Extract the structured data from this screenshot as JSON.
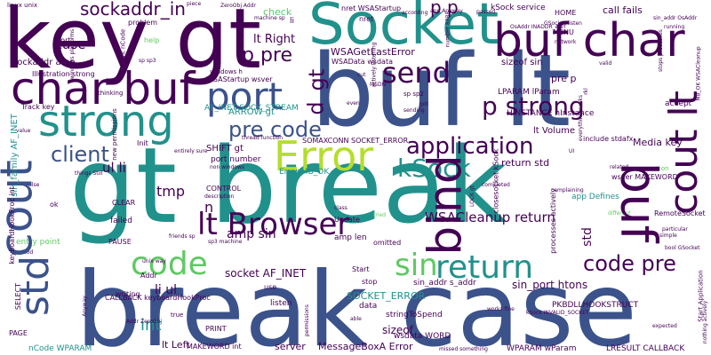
{
  "palette": {
    "background": "#ffffff",
    "dark_purple": "#440154",
    "indigo": "#3b528b",
    "teal": "#21918c",
    "green": "#5ec962",
    "lime": "#b5de2b"
  },
  "words": [
    {
      "text": "gt break",
      "color": "#21918c",
      "weight": 100
    },
    {
      "text": "break case",
      "color": "#3b528b",
      "weight": 98
    },
    {
      "text": "buf lt",
      "color": "#3b528b",
      "weight": 96
    },
    {
      "text": "key gt",
      "color": "#440154",
      "weight": 90
    },
    {
      "text": "Socket",
      "color": "#21918c",
      "weight": 78
    },
    {
      "text": "buf char",
      "color": "#440154",
      "weight": 72
    },
    {
      "text": "char buf",
      "color": "#440154",
      "weight": 70
    },
    {
      "text": "strong",
      "color": "#21918c",
      "weight": 66
    },
    {
      "text": "Error",
      "color": "#b5de2b",
      "weight": 60
    },
    {
      "text": "cout",
      "color": "#3b528b",
      "weight": 58
    },
    {
      "text": "buf",
      "color": "#440154",
      "weight": 56
    },
    {
      "text": "port",
      "color": "#3b528b",
      "weight": 54
    },
    {
      "text": "bind",
      "color": "#440154",
      "weight": 52
    },
    {
      "text": "return",
      "color": "#21918c",
      "weight": 48
    },
    {
      "text": "code",
      "color": "#5ec962",
      "weight": 46
    },
    {
      "text": "std",
      "color": "#3b528b",
      "weight": 46
    },
    {
      "text": "sin",
      "color": "#5ec962",
      "weight": 44
    },
    {
      "text": "cout lt",
      "color": "#440154",
      "weight": 44
    },
    {
      "text": "lt Browser",
      "color": "#440154",
      "weight": 42
    },
    {
      "text": "send",
      "color": "#440154",
      "weight": 40
    },
    {
      "text": "p strong",
      "color": "#440154",
      "weight": 38
    },
    {
      "text": "application",
      "color": "#440154",
      "weight": 34
    },
    {
      "text": "kSock",
      "color": "#21918c",
      "weight": 34
    },
    {
      "text": "pre code",
      "color": "#3b528b",
      "weight": 32
    },
    {
      "text": "client",
      "color": "#3b528b",
      "weight": 32
    },
    {
      "text": "code pre",
      "color": "#440154",
      "weight": 30
    },
    {
      "text": "p pre",
      "color": "#440154",
      "weight": 28
    },
    {
      "text": "sockaddr_in",
      "color": "#440154",
      "weight": 26
    },
    {
      "text": "p p",
      "color": "#440154",
      "weight": 26
    },
    {
      "text": "gt",
      "color": "#440154",
      "weight": 26
    },
    {
      "text": "d",
      "color": "#440154",
      "weight": 24
    },
    {
      "text": "int",
      "color": "#21918c",
      "weight": 24
    },
    {
      "text": "tmp",
      "color": "#440154",
      "weight": 22
    },
    {
      "text": "n",
      "color": "#440154",
      "weight": 22
    },
    {
      "text": "WSACleanup return",
      "color": "#440154",
      "weight": 22
    },
    {
      "text": "ul li",
      "color": "#440154",
      "weight": 20
    },
    {
      "text": "li ul",
      "color": "#440154",
      "weight": 20
    },
    {
      "text": "amp sin",
      "color": "#440154",
      "weight": 20
    },
    {
      "text": "std",
      "color": "#440154",
      "weight": 20
    },
    {
      "text": "sin_port htons",
      "color": "#440154",
      "weight": 18
    },
    {
      "text": "return std",
      "color": "#440154",
      "weight": 16
    },
    {
      "text": "WSAGetLastError",
      "color": "#440154",
      "weight": 16
    },
    {
      "text": "lt Right",
      "color": "#440154",
      "weight": 16
    },
    {
      "text": "call fails",
      "color": "#440154",
      "weight": 16
    },
    {
      "text": "kSock service",
      "color": "#440154",
      "weight": 14
    },
    {
      "text": "socket AF_INET",
      "color": "#440154",
      "weight": 14
    },
    {
      "text": "case",
      "color": "#440154",
      "weight": 14
    },
    {
      "text": "sockaddr amp",
      "color": "#440154",
      "weight": 14
    },
    {
      "text": "lt Left",
      "color": "#440154",
      "weight": 14
    },
    {
      "text": "SOCKET_ERROR",
      "color": "#21918c",
      "weight": 14
    },
    {
      "text": "sizeof",
      "color": "#440154",
      "weight": 14
    },
    {
      "text": "Media key",
      "color": "#440154",
      "weight": 13
    },
    {
      "text": "RemoteSocket",
      "color": "#440154",
      "weight": 13
    },
    {
      "text": "accept",
      "color": "#440154",
      "weight": 13
    },
    {
      "text": "check",
      "color": "#5ec962",
      "weight": 13
    },
    {
      "text": "sin_family AF_INET",
      "color": "#21918c",
      "weight": 13
    },
    {
      "text": "AF_INET SOCK_STREAM",
      "color": "#21918c",
      "weight": 12
    },
    {
      "text": "ARROW gt",
      "color": "#21918c",
      "weight": 12
    },
    {
      "text": "lt Volume",
      "color": "#440154",
      "weight": 12
    },
    {
      "text": "pre p",
      "color": "#440154",
      "weight": 12
    },
    {
      "text": "sizeof sin",
      "color": "#440154",
      "weight": 12
    },
    {
      "text": "CALLBACK keyboardHookProc",
      "color": "#440154",
      "weight": 12
    },
    {
      "text": "MessageBoxA Error",
      "color": "#440154",
      "weight": 12
    },
    {
      "text": "server",
      "color": "#440154",
      "weight": 12
    },
    {
      "text": "MAKEWORD int",
      "color": "#440154",
      "weight": 11
    },
    {
      "text": "LPARAM lParam",
      "color": "#440154",
      "weight": 11
    },
    {
      "text": "Error MB_OK",
      "color": "#21918c",
      "weight": 11
    },
    {
      "text": "SHIFT gt",
      "color": "#440154",
      "weight": 11
    },
    {
      "text": "port number",
      "color": "#440154",
      "weight": 11
    },
    {
      "text": "Illustration strong",
      "color": "#440154",
      "weight": 10
    },
    {
      "text": "failed",
      "color": "#440154",
      "weight": 10
    },
    {
      "text": "listen",
      "color": "#440154",
      "weight": 10
    },
    {
      "text": "data",
      "color": "#440154",
      "weight": 10
    },
    {
      "text": "stringToSpend",
      "color": "#440154",
      "weight": 10
    },
    {
      "text": "wsdata WORD",
      "color": "#440154",
      "weight": 10
    },
    {
      "text": "LRESULT CALLBACK",
      "color": "#440154",
      "weight": 10
    },
    {
      "text": "WPARAM wParam",
      "color": "#440154",
      "weight": 10
    },
    {
      "text": "nCode WPARAM",
      "color": "#21918c",
      "weight": 10
    },
    {
      "text": "PKBDLLHOOKSTRUCT",
      "color": "#440154",
      "weight": 10
    },
    {
      "text": "SOMAXCONN SOCKET_ERROR",
      "color": "#440154",
      "weight": 10
    },
    {
      "text": "HINSTANCE hInstance",
      "color": "#440154",
      "weight": 10
    },
    {
      "text": "WSAStartup wsver",
      "color": "#440154",
      "weight": 10
    },
    {
      "text": "WSAData wsdata",
      "color": "#440154",
      "weight": 10
    },
    {
      "text": "closesocket kSock",
      "color": "#440154",
      "weight": 10
    },
    {
      "text": "include stdafx",
      "color": "#440154",
      "weight": 10
    },
    {
      "text": "wsver MAKEWORD",
      "color": "#440154",
      "weight": 10
    },
    {
      "text": "app Defines",
      "color": "#21918c",
      "weight": 10
    },
    {
      "text": "Init",
      "color": "#440154",
      "weight": 10
    },
    {
      "text": "entry point",
      "color": "#5ec962",
      "weight": 10
    },
    {
      "text": "keyboardHookProc int",
      "color": "#440154",
      "weight": 10
    },
    {
      "text": "Track key",
      "color": "#440154",
      "weight": 10
    },
    {
      "text": "amp len",
      "color": "#440154",
      "weight": 10
    },
    {
      "text": "Addr",
      "color": "#440154",
      "weight": 10
    },
    {
      "text": "stop",
      "color": "#440154",
      "weight": 10
    },
    {
      "text": "sin_addr s_addr",
      "color": "#440154",
      "weight": 9
    },
    {
      "text": "help",
      "color": "#5ec962",
      "weight": 9
    },
    {
      "text": "sort",
      "color": "#440154",
      "weight": 9
    },
    {
      "text": "CLEAR",
      "color": "#440154",
      "weight": 9
    },
    {
      "text": "PAUSE",
      "color": "#440154",
      "weight": 9
    },
    {
      "text": "SELECT",
      "color": "#440154",
      "weight": 9
    },
    {
      "text": "PRINT",
      "color": "#440154",
      "weight": 9
    },
    {
      "text": "PAGE",
      "color": "#440154",
      "weight": 9
    },
    {
      "text": "CONTROL",
      "color": "#440154",
      "weight": 9
    },
    {
      "text": "writing",
      "color": "#440154",
      "weight": 9
    },
    {
      "text": "problem",
      "color": "#440154",
      "weight": 9
    },
    {
      "text": "ok",
      "color": "#440154",
      "weight": 9
    },
    {
      "text": "use",
      "color": "#440154",
      "weight": 9
    },
    {
      "text": "Update",
      "color": "#440154",
      "weight": 9
    },
    {
      "text": "omitted",
      "color": "#440154",
      "weight": 9
    },
    {
      "text": "Start",
      "color": "#440154",
      "weight": 9
    },
    {
      "text": "nret WSAStartup",
      "color": "#440154",
      "weight": 9
    },
    {
      "text": "nret",
      "color": "#440154",
      "weight": 9
    },
    {
      "text": "HOME",
      "color": "#440154",
      "weight": 9
    },
    {
      "text": "MENU",
      "color": "#440154",
      "weight": 9
    },
    {
      "text": "li",
      "color": "#440154",
      "weight": 9
    },
    {
      "text": "windows h",
      "color": "#440154",
      "weight": 8
    },
    {
      "text": "sp sp2",
      "color": "#440154",
      "weight": 8
    },
    {
      "text": "thinking",
      "color": "#440154",
      "weight": 8
    },
    {
      "text": "connection",
      "color": "#5ec962",
      "weight": 8
    },
    {
      "text": "true",
      "color": "#440154",
      "weight": 8
    },
    {
      "text": "linux unix",
      "color": "#440154",
      "weight": 8
    },
    {
      "text": "new permissions",
      "color": "#440154",
      "weight": 8
    },
    {
      "text": "ZeroObj Addr",
      "color": "#440154",
      "weight": 7
    },
    {
      "text": "app Anyway",
      "color": "#440154",
      "weight": 7
    },
    {
      "text": "sin_addr OsAddr",
      "color": "#440154",
      "weight": 7
    },
    {
      "text": "GSocket listen",
      "color": "#440154",
      "weight": 7
    },
    {
      "text": "running",
      "color": "#440154",
      "weight": 7
    },
    {
      "text": "thread function",
      "color": "#440154",
      "weight": 7
    },
    {
      "text": "non windows",
      "color": "#440154",
      "weight": 7
    },
    {
      "text": "description",
      "color": "#440154",
      "weight": 7
    },
    {
      "text": "particular",
      "color": "#440154",
      "weight": 7
    },
    {
      "text": "simple",
      "color": "#440154",
      "weight": 7
    },
    {
      "text": "bool GSocket",
      "color": "#440154",
      "weight": 7
    },
    {
      "text": "expected",
      "color": "#440154",
      "weight": 7
    },
    {
      "text": "missed something",
      "color": "#440154",
      "weight": 7
    },
    {
      "text": "stops processes",
      "color": "#440154",
      "weight": 7
    },
    {
      "text": "things Still",
      "color": "#440154",
      "weight": 7
    },
    {
      "text": "entirely sure",
      "color": "#440154",
      "weight": 7
    },
    {
      "text": "value",
      "color": "#440154",
      "weight": 7
    },
    {
      "text": "method",
      "color": "#440154",
      "weight": 7
    },
    {
      "text": "sp3 machine",
      "color": "#440154",
      "weight": 7
    },
    {
      "text": "friends sp",
      "color": "#440154",
      "weight": 7
    },
    {
      "text": "different",
      "color": "#5ec962",
      "weight": 7
    },
    {
      "text": "related",
      "color": "#440154",
      "weight": 7
    },
    {
      "text": "tried",
      "color": "#5ec962",
      "weight": 7
    },
    {
      "text": "class",
      "color": "#440154",
      "weight": 7
    },
    {
      "text": "false",
      "color": "#440154",
      "weight": 7
    },
    {
      "text": "cut",
      "color": "#440154",
      "weight": 7
    },
    {
      "text": "got",
      "color": "#440154",
      "weight": 7
    },
    {
      "text": "sending",
      "color": "#440154",
      "weight": 7
    },
    {
      "text": "MSDN",
      "color": "#440154",
      "weight": 7
    },
    {
      "text": "network",
      "color": "#440154",
      "weight": 7
    },
    {
      "text": "piece",
      "color": "#440154",
      "weight": 7
    },
    {
      "text": "passed",
      "color": "#440154",
      "weight": 7
    },
    {
      "text": "according",
      "color": "#440154",
      "weight": 7
    },
    {
      "text": "machine sp",
      "color": "#440154",
      "weight": 7
    },
    {
      "text": "even",
      "color": "#440154",
      "weight": 7
    },
    {
      "text": "able",
      "color": "#440154",
      "weight": 7
    },
    {
      "text": "nothing actively",
      "color": "#440154",
      "weight": 7
    },
    {
      "text": "int nCode",
      "color": "#440154",
      "weight": 7
    },
    {
      "text": "unix way",
      "color": "#440154",
      "weight": 7
    },
    {
      "text": "Addr ZeroObj",
      "color": "#440154",
      "weight": 7
    },
    {
      "text": "permissions",
      "color": "#440154",
      "weight": 7
    },
    {
      "text": "Start Application",
      "color": "#440154",
      "weight": 7
    },
    {
      "text": "LOCK gt",
      "color": "#440154",
      "weight": 7
    },
    {
      "text": "MB_OK WSACleanup",
      "color": "#440154",
      "weight": 7
    },
    {
      "text": "everything works",
      "color": "#440154",
      "weight": 7
    },
    {
      "text": "sp sp3",
      "color": "#440154",
      "weight": 7
    },
    {
      "text": "processes actively",
      "color": "#440154",
      "weight": 7
    },
    {
      "text": "windows platforms",
      "color": "#440154",
      "weight": 7
    },
    {
      "text": "kSock INVALID_SOCKET",
      "color": "#440154",
      "weight": 7
    },
    {
      "text": "Anyway",
      "color": "#440154",
      "weight": 7
    },
    {
      "text": "complaining",
      "color": "#440154",
      "weight": 7
    },
    {
      "text": "OsAddr INADDR_ANY",
      "color": "#440154",
      "weight": 7
    },
    {
      "text": "UI",
      "color": "#440154",
      "weight": 7
    },
    {
      "text": "rkl",
      "color": "#440154",
      "weight": 7
    },
    {
      "text": "works fine",
      "color": "#440154",
      "weight": 7
    },
    {
      "text": "actively listening",
      "color": "#440154",
      "weight": 7
    },
    {
      "text": "completed",
      "color": "#440154",
      "weight": 7
    },
    {
      "text": "number 8888",
      "color": "#440154",
      "weight": 7
    },
    {
      "text": "valid",
      "color": "#440154",
      "weight": 7
    }
  ]
}
